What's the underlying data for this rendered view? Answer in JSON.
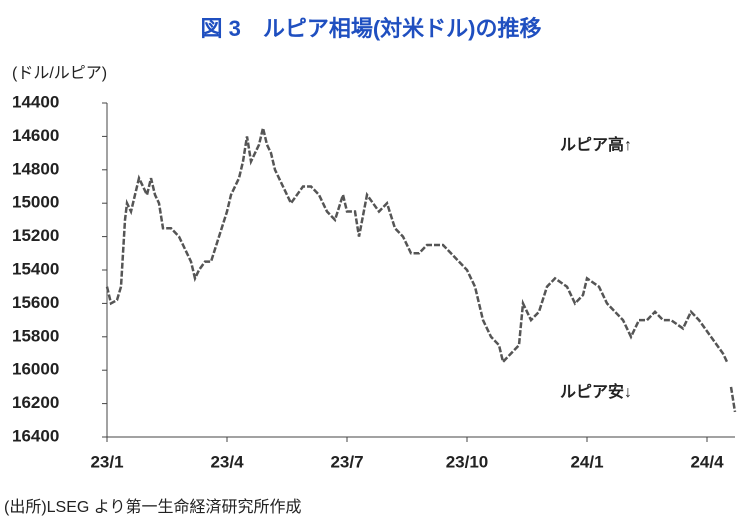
{
  "chart_data": {
    "type": "line",
    "title": "図 3　ルピア相場(対米ドル)の推移",
    "y_label": "(ドル/ルピア)",
    "annotations": [
      "ルピア高↑",
      "ルピア安↓"
    ],
    "source": "(出所)LSEG より第一生命経済研究所作成",
    "x": [
      0,
      0.1,
      0.25,
      0.35,
      0.4,
      0.45,
      0.5,
      0.6,
      0.7,
      0.8,
      1.0,
      1.1,
      1.2,
      1.3,
      1.4,
      1.6,
      1.8,
      2.0,
      2.1,
      2.2,
      2.3,
      2.45,
      2.6,
      3.0,
      3.1,
      3.3,
      3.4,
      3.5,
      3.6,
      3.8,
      3.9,
      4.0,
      4.1,
      4.2,
      4.4,
      4.6,
      4.9,
      5.1,
      5.3,
      5.5,
      5.7,
      5.9,
      6.0,
      6.2,
      6.3,
      6.5,
      6.8,
      7.0,
      7.2,
      7.4,
      7.6,
      7.8,
      8.0,
      8.2,
      8.4,
      8.6,
      8.8,
      9.0,
      9.2,
      9.4,
      9.6,
      9.8,
      9.9,
      10.1,
      10.3,
      10.4,
      10.6,
      10.8,
      11.0,
      11.2,
      11.5,
      11.7,
      11.9,
      12.0,
      12.3,
      12.5,
      12.7,
      12.9,
      13.1,
      13.3,
      13.5,
      13.7,
      13.9,
      14.1,
      14.4,
      14.6,
      14.8,
      15.1,
      15.4,
      15.5,
      15.55,
      15.6,
      15.7
    ],
    "series": [
      {
        "color": "#555555",
        "values": [
          15500,
          15600,
          15580,
          15500,
          15300,
          15100,
          15000,
          15050,
          14950,
          14850,
          14950,
          14850,
          14950,
          15000,
          15150,
          15150,
          15200,
          15300,
          15350,
          15450,
          15400,
          15350,
          15350,
          15050,
          14950,
          14850,
          14750,
          14600,
          14750,
          14650,
          14550,
          14650,
          14700,
          14800,
          14900,
          15000,
          14900,
          14900,
          14950,
          15050,
          15100,
          14950,
          15050,
          15050,
          15200,
          14950,
          15050,
          15000,
          15150,
          15200,
          15300,
          15300,
          15250,
          15250,
          15250,
          15300,
          15350,
          15400,
          15500,
          15700,
          15800,
          15850,
          15950,
          15900,
          15850,
          15600,
          15700,
          15650,
          15500,
          15450,
          15500,
          15600,
          15550,
          15450,
          15500,
          15600,
          15650,
          15700,
          15800,
          15700,
          15700,
          15650,
          15700,
          15700,
          15750,
          15650,
          15700,
          15800,
          15900,
          15950,
          null,
          16100,
          16250
        ]
      }
    ],
    "xlim": [
      0,
      15.7
    ],
    "xticks": [
      {
        "value": 0,
        "label": "23/1"
      },
      {
        "value": 3,
        "label": "23/4"
      },
      {
        "value": 6,
        "label": "23/7"
      },
      {
        "value": 9,
        "label": "23/10"
      },
      {
        "value": 12,
        "label": "24/1"
      },
      {
        "value": 15,
        "label": "24/4"
      }
    ],
    "ylim": [
      14400,
      16400
    ],
    "yticks": [
      14400,
      14600,
      14800,
      15000,
      15200,
      15400,
      15600,
      15800,
      16000,
      16200,
      16400
    ],
    "y_reversed": true
  }
}
